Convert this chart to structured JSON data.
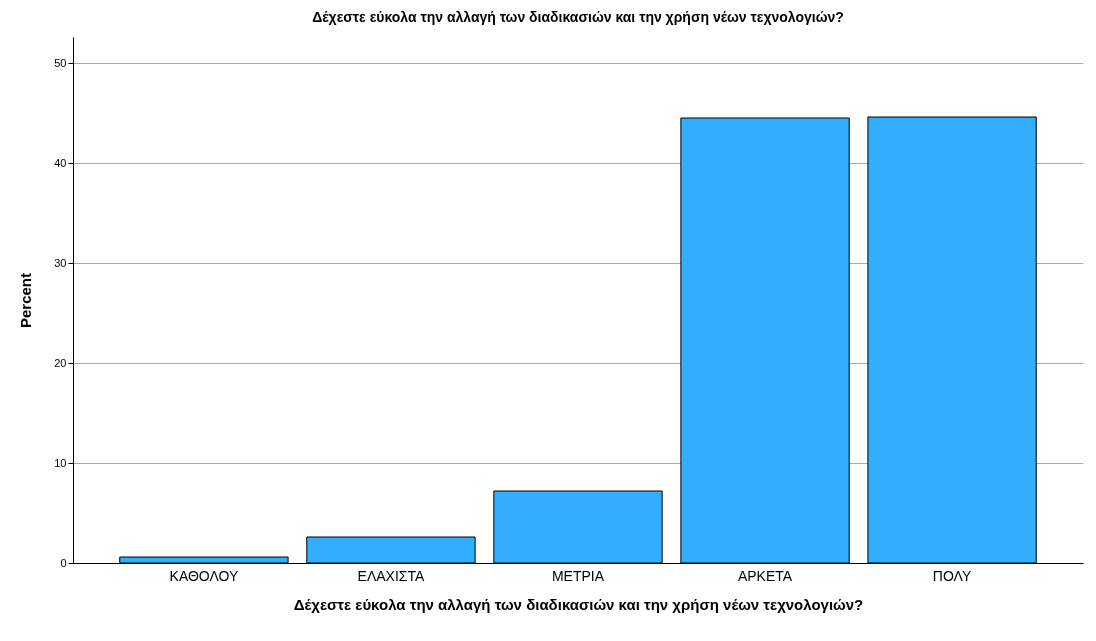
{
  "chart_data": {
    "type": "bar",
    "title": "Δέχεστε εύκολα την αλλαγή των διαδικασιών και την χρήση νέων τεχνολογιών?",
    "xlabel": "Δέχεστε εύκολα την αλλαγή των διαδικασιών και την χρήση νέων τεχνολογιών?",
    "ylabel": "Percent",
    "categories": [
      "ΚΑΘΟΛΟΥ",
      "ΕΛΑΧΙΣΤΑ",
      "ΜΕΤΡΙΑ",
      "ΑΡΚΕΤΑ",
      "ΠΟΛΥ"
    ],
    "values": [
      0.6,
      2.6,
      7.2,
      44.5,
      44.6
    ],
    "color": "#33adff",
    "ylim": [
      0,
      52.6
    ],
    "yticks": [
      0,
      10,
      20,
      30,
      40,
      50
    ],
    "grid": "y"
  }
}
